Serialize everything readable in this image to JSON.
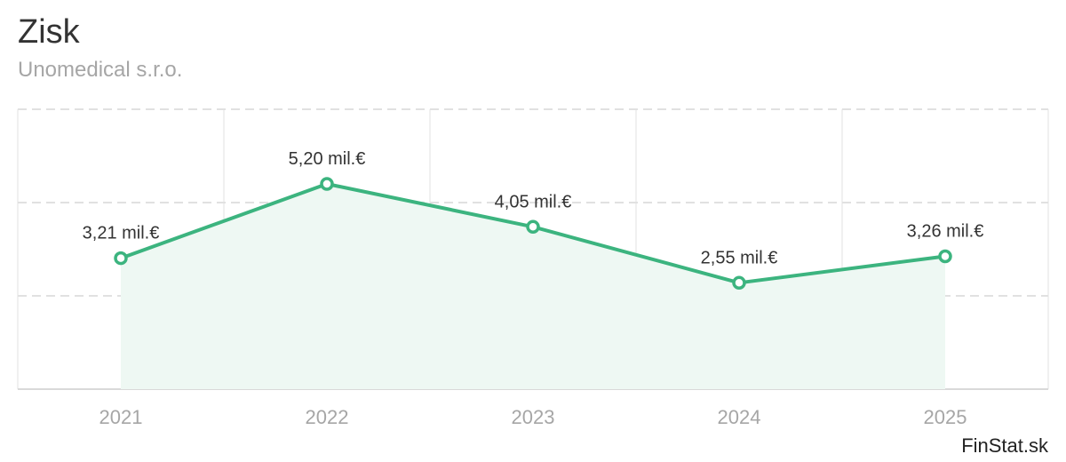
{
  "title": "Zisk",
  "subtitle": "Unomedical s.r.o.",
  "credit": "FinStat.sk",
  "colors": {
    "line": "#3cb47f",
    "area": "#eef8f3",
    "grid": "#e1e1e1",
    "axis": "#d9d9d9",
    "text": "#333333",
    "muted": "#a6a6a6"
  },
  "chart_data": {
    "type": "area",
    "categories": [
      "2021",
      "2022",
      "2023",
      "2024",
      "2025"
    ],
    "values": [
      3.21,
      5.2,
      4.05,
      2.55,
      3.26
    ],
    "data_labels": [
      "3,21 mil.€",
      "5,20 mil.€",
      "4,05 mil.€",
      "2,55 mil.€",
      "3,26 mil.€"
    ],
    "unit": "mil.€",
    "ylim": [
      -0.3,
      7.2
    ],
    "grid": true,
    "legend": "none",
    "title": "Zisk",
    "subtitle": "Unomedical s.r.o."
  }
}
